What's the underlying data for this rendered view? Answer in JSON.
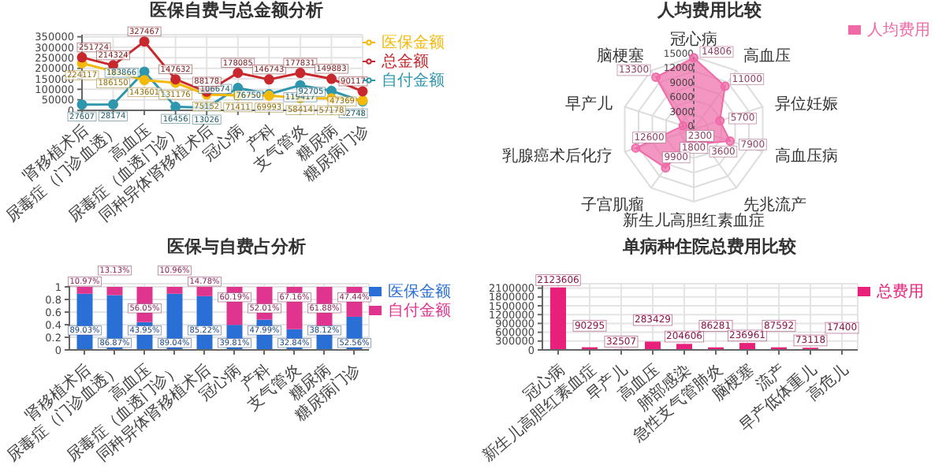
{
  "chart_data": [
    {
      "type": "line",
      "title": "医保自费与总金额分析",
      "categories": [
        "肾移植术后",
        "尿毒症（门诊血透）",
        "高血压",
        "尿毒症（血透门诊）",
        "同种异体肾移植术后",
        "冠心病",
        "产科",
        "支气管炎",
        "糖尿病",
        "糖尿病门诊"
      ],
      "series": [
        {
          "name": "自付金额",
          "color": "#2e97ae",
          "values": [
            27607,
            28174,
            183866,
            16456,
            13026,
            106674,
            76750,
            119417,
            92705,
            42748
          ]
        },
        {
          "name": "医保金额",
          "color": "#f5b90b",
          "values": [
            224117,
            186150,
            143601,
            131176,
            75152,
            71411,
            69993,
            58414,
            57178,
            47369
          ]
        },
        {
          "name": "总金额",
          "color": "#c8282d",
          "values": [
            251724,
            214324,
            327467,
            147632,
            88178,
            178085,
            146743,
            177831,
            149883,
            90117
          ]
        }
      ],
      "ylim": [
        0,
        360000
      ],
      "yticks": [
        0,
        50000,
        100000,
        150000,
        200000,
        250000,
        300000,
        350000
      ],
      "grid": true,
      "legend": "top right",
      "marker": "circle",
      "data_labels": true
    },
    {
      "type": "radar",
      "title": "人均费用比较",
      "categories": [
        "冠心病",
        "高血压",
        "异位妊娠",
        "高血压病",
        "先兆流产",
        "新生儿高胆红素血症",
        "子宫肌瘤",
        "乳腺癌术后化疗",
        "早产儿",
        "脑梗塞"
      ],
      "series": [
        {
          "name": "人均费用",
          "color": "#f06aa8",
          "values": [
            14806,
            11000,
            5700,
            7900,
            3600,
            1800,
            9900,
            12600,
            2300,
            13300
          ]
        }
      ],
      "ylim": [
        0,
        15000
      ],
      "yticks": [
        0,
        3000,
        6000,
        9000,
        12000,
        15000
      ],
      "grid": true,
      "legend": "top right",
      "marker": "circle",
      "data_labels": true
    },
    {
      "type": "bar",
      "title": "医保与自费占分析",
      "stacked": true,
      "categories": [
        "肾移植术后",
        "尿毒症（门诊血透）",
        "高血压",
        "尿毒症（血透门诊）",
        "同种异体肾移植术后",
        "冠心病",
        "产科",
        "支气管炎",
        "糖尿病",
        "糖尿病门诊"
      ],
      "series": [
        {
          "name": "医保金额",
          "color": "#2a6fd6",
          "values": [
            0.8903,
            0.8687,
            0.4395,
            0.8904,
            0.8522,
            0.3981,
            0.4799,
            0.3284,
            0.3812,
            0.5256
          ],
          "value_labels": [
            "89.03%",
            "86.87%",
            "43.95%",
            "89.04%",
            "85.22%",
            "39.81%",
            "47.99%",
            "32.84%",
            "38.12%",
            "52.56%"
          ]
        },
        {
          "name": "自付金额",
          "color": "#e0358f",
          "values": [
            0.1097,
            0.1313,
            0.5605,
            0.1096,
            0.1478,
            0.6019,
            0.5201,
            0.6716,
            0.6188,
            0.4744
          ],
          "value_labels": [
            "10.97%",
            "13.13%",
            "56.05%",
            "10.96%",
            "14.78%",
            "60.19%",
            "52.01%",
            "67.16%",
            "61.88%",
            "47.44%"
          ]
        }
      ],
      "ylim": [
        0,
        1.05
      ],
      "yticks": [
        0,
        0.2,
        0.4,
        0.6,
        0.8,
        1
      ],
      "grid": true,
      "legend": "top right"
    },
    {
      "type": "bar",
      "title": "单病种住院总费用比较",
      "categories": [
        "冠心病",
        "新生儿高胆红素血症",
        "早产儿",
        "高血压",
        "肺部感染",
        "急性支气管肺炎",
        "脑梗塞",
        "流产",
        "早产低体重儿",
        "高危儿"
      ],
      "series": [
        {
          "name": "总费用",
          "color": "#e8207a",
          "values": [
            2123606,
            90295,
            32507,
            283429,
            204606,
            86281,
            236961,
            87592,
            73118,
            17400
          ]
        }
      ],
      "ylim": [
        0,
        2250000
      ],
      "yticks": [
        0,
        300000,
        600000,
        900000,
        1200000,
        1500000,
        1800000,
        2100000
      ],
      "grid": true,
      "legend": "top right",
      "data_labels": true
    }
  ]
}
